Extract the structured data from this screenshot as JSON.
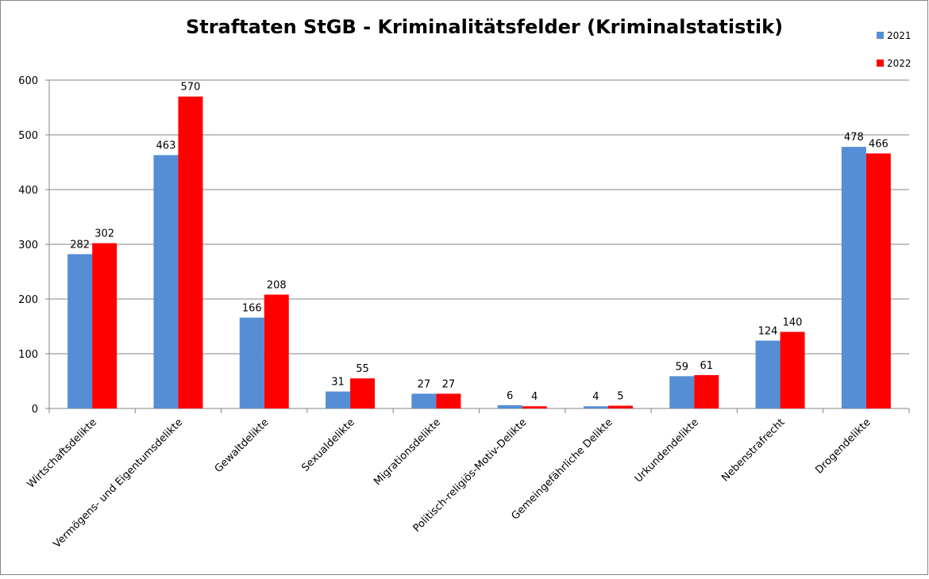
{
  "chart_data": {
    "type": "bar",
    "title": "Straftaten StGB - Kriminalitätsfelder (Kriminalstatistik)",
    "categories": [
      "Wirtschaftsdelikte",
      "Vermögens- und Eigentumsdelikte",
      "Gewaltdelikte",
      "Sexualdelikte",
      "Migrationsdelikte",
      "Politisch-religiös-Motiv-Delikte",
      "Gemeingefährliche Delikte",
      "Urkundendelikte",
      "Nebenstrafrecht",
      "Drogendelikte"
    ],
    "series": [
      {
        "name": "2021",
        "color": "#558ed5",
        "values": [
          282,
          463,
          166,
          31,
          27,
          6,
          4,
          59,
          124,
          478
        ]
      },
      {
        "name": "2022",
        "color": "#ff0000",
        "values": [
          302,
          570,
          208,
          55,
          27,
          4,
          5,
          61,
          140,
          466
        ]
      }
    ],
    "ylim": [
      0,
      600
    ],
    "yticks": [
      0,
      100,
      200,
      300,
      400,
      500,
      600
    ],
    "grid": true,
    "legend": "top-right"
  }
}
